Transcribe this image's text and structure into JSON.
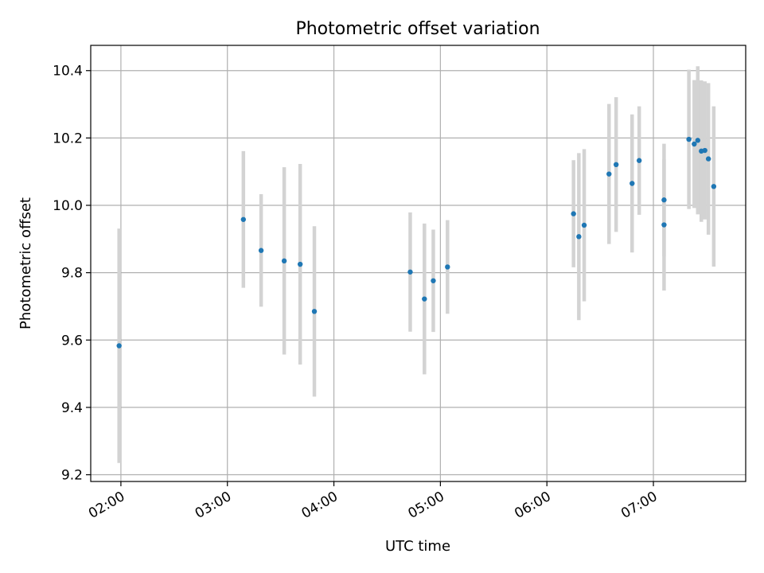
{
  "chart_data": {
    "type": "scatter",
    "title": "Photometric offset variation",
    "xlabel": "UTC time",
    "ylabel": "Photometric offset",
    "xlim": [
      "01:43",
      "07:52"
    ],
    "ylim": [
      9.18,
      10.475
    ],
    "grid": true,
    "x_ticks": [
      "02:00",
      "03:00",
      "04:00",
      "05:00",
      "06:00",
      "07:00"
    ],
    "y_ticks": [
      9.2,
      9.4,
      9.6,
      9.8,
      10.0,
      10.2,
      10.4
    ],
    "colors": {
      "point": "#1f77b4",
      "errorbar": "#d3d3d3",
      "grid": "#b0b0b0"
    },
    "series": [
      {
        "points": [
          {
            "x": "01:59",
            "y": 9.583,
            "err": 0.348
          },
          {
            "x": "03:09",
            "y": 9.958,
            "err": 0.203
          },
          {
            "x": "03:19",
            "y": 9.866,
            "err": 0.167
          },
          {
            "x": "03:32",
            "y": 9.835,
            "err": 0.278
          },
          {
            "x": "03:41",
            "y": 9.825,
            "err": 0.298
          },
          {
            "x": "03:49",
            "y": 9.685,
            "err": 0.253
          },
          {
            "x": "04:43",
            "y": 9.802,
            "err": 0.177
          },
          {
            "x": "04:51",
            "y": 9.722,
            "err": 0.224
          },
          {
            "x": "04:56",
            "y": 9.776,
            "err": 0.152
          },
          {
            "x": "05:04",
            "y": 9.817,
            "err": 0.139
          },
          {
            "x": "06:15",
            "y": 9.975,
            "err": 0.159
          },
          {
            "x": "06:18",
            "y": 9.907,
            "err": 0.248
          },
          {
            "x": "06:21",
            "y": 9.941,
            "err": 0.226
          },
          {
            "x": "06:35",
            "y": 10.093,
            "err": 0.208
          },
          {
            "x": "06:39",
            "y": 10.121,
            "err": 0.2
          },
          {
            "x": "06:48",
            "y": 10.065,
            "err": 0.205
          },
          {
            "x": "06:52",
            "y": 10.133,
            "err": 0.161
          },
          {
            "x": "07:06",
            "y": 10.016,
            "err": 0.167
          },
          {
            "x": "07:06",
            "y": 9.942,
            "err": 0.195
          },
          {
            "x": "07:20",
            "y": 10.196,
            "err": 0.207
          },
          {
            "x": "07:23",
            "y": 10.182,
            "err": 0.19
          },
          {
            "x": "07:25",
            "y": 10.193,
            "err": 0.22
          },
          {
            "x": "07:27",
            "y": 10.161,
            "err": 0.21
          },
          {
            "x": "07:29",
            "y": 10.163,
            "err": 0.205
          },
          {
            "x": "07:31",
            "y": 10.138,
            "err": 0.225
          },
          {
            "x": "07:34",
            "y": 10.056,
            "err": 0.238
          }
        ]
      }
    ]
  }
}
